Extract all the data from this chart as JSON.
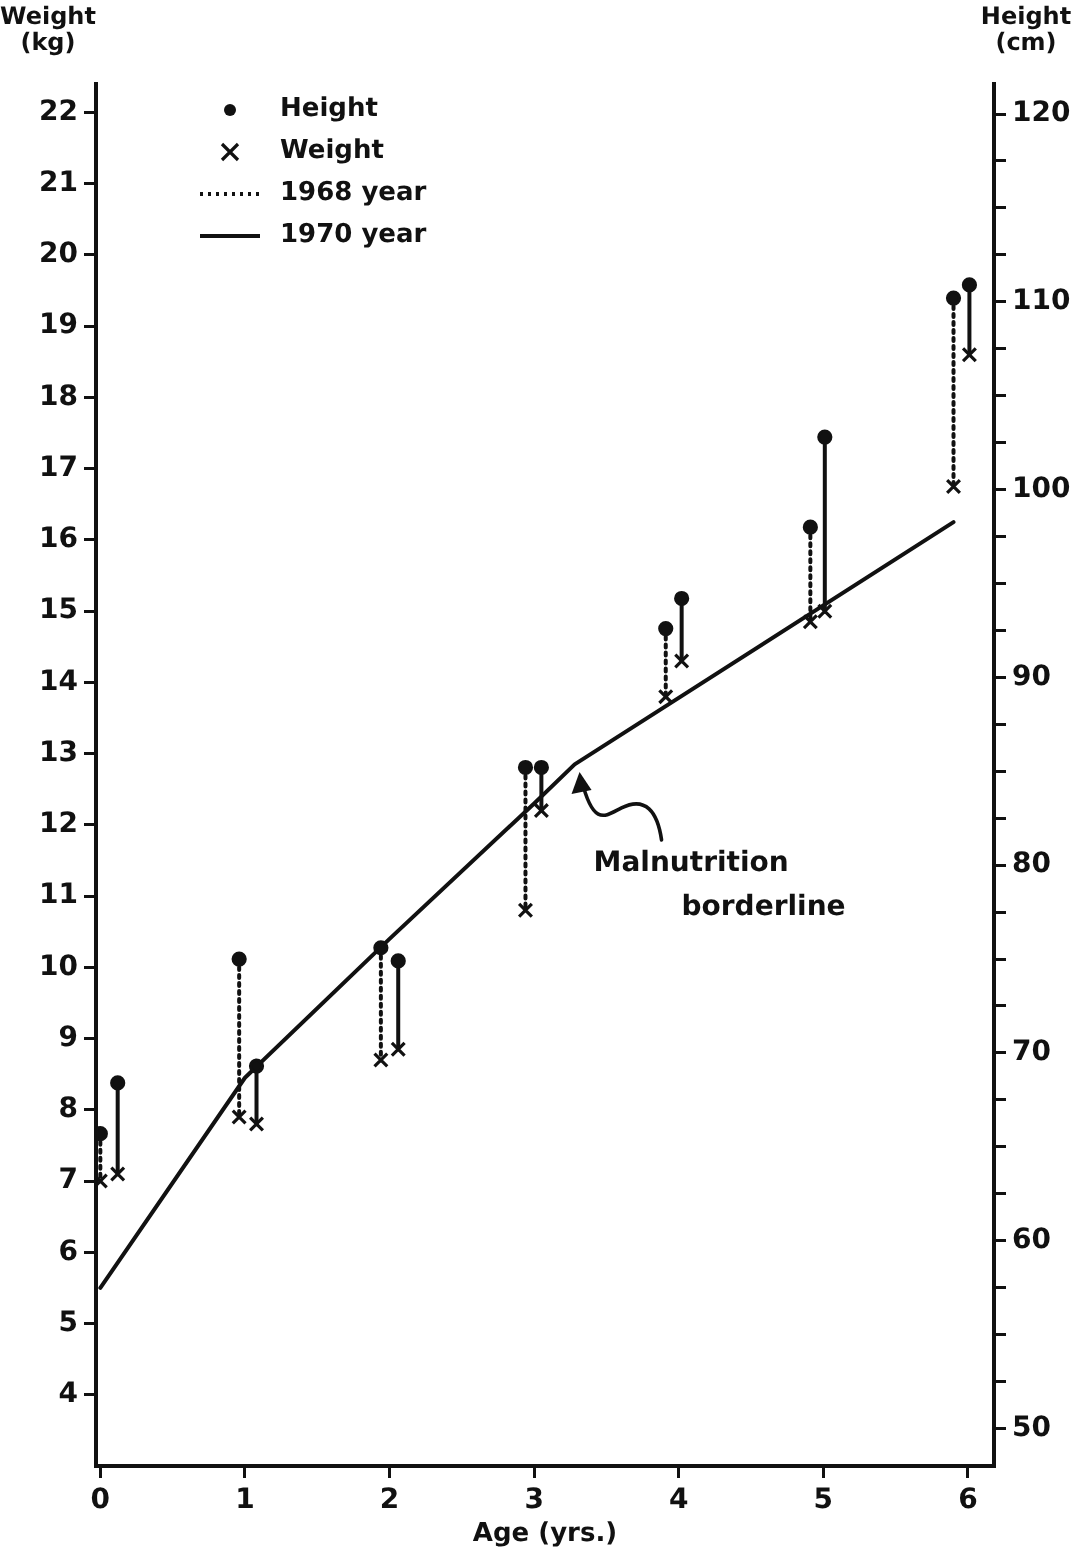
{
  "chart_data": {
    "type": "line",
    "xlabel": "Age (yrs.)",
    "ylabel": "Weight (kg)",
    "y2label": "Height (cm)",
    "xlim": [
      -0.03,
      6.18
    ],
    "xticks": [
      0,
      1,
      2,
      3,
      4,
      5,
      6
    ],
    "ylim": [
      3,
      22.4
    ],
    "yticks": [
      4,
      5,
      6,
      7,
      8,
      9,
      10,
      11,
      12,
      13,
      14,
      15,
      16,
      17,
      18,
      19,
      20,
      21,
      22
    ],
    "y2lim": [
      48,
      121.6
    ],
    "y2ticks": [
      50,
      {
        "value": 52.5,
        "label": null
      },
      {
        "value": 55,
        "label": null
      },
      {
        "value": 57.5,
        "label": null
      },
      60,
      {
        "value": 62.5,
        "label": null
      },
      {
        "value": 65,
        "label": null
      },
      {
        "value": 67.5,
        "label": null
      },
      70,
      {
        "value": 72.5,
        "label": null
      },
      {
        "value": 75,
        "label": null
      },
      {
        "value": 77.5,
        "label": null
      },
      80,
      {
        "value": 82.5,
        "label": null
      },
      {
        "value": 85,
        "label": null
      },
      {
        "value": 87.5,
        "label": null
      },
      90,
      {
        "value": 92.5,
        "label": null
      },
      {
        "value": 95,
        "label": null
      },
      {
        "value": 97.5,
        "label": null
      },
      100,
      {
        "value": 102.5,
        "label": null
      },
      {
        "value": 105,
        "label": null
      },
      {
        "value": 107.5,
        "label": null
      },
      110,
      {
        "value": 112.5,
        "label": null
      },
      {
        "value": 115,
        "label": null
      },
      {
        "value": 117.5,
        "label": null
      },
      120
    ],
    "legend": "top left",
    "series": [
      {
        "name": "Height",
        "type": "scatter",
        "marker": "circle",
        "axis": "y2",
        "color": "#111111",
        "x": [
          0,
          0.12,
          0.96,
          1.08,
          1.94,
          2.06,
          2.94,
          3.05,
          3.91,
          4.02,
          4.91,
          5.01,
          5.9,
          6.01
        ],
        "values": [
          65.7,
          68.4,
          75.0,
          69.3,
          75.6,
          74.9,
          85.2,
          85.2,
          92.6,
          94.2,
          98.0,
          102.8,
          110.2,
          110.9
        ]
      },
      {
        "name": "Weight",
        "type": "scatter",
        "marker": "cross",
        "color": "#111111",
        "x": [
          0,
          0.12,
          0.96,
          1.08,
          1.94,
          2.06,
          2.94,
          3.05,
          3.91,
          4.02,
          4.91,
          5.01,
          5.9,
          6.01
        ],
        "values": [
          7.0,
          7.1,
          7.9,
          7.8,
          8.7,
          8.85,
          10.8,
          12.2,
          13.8,
          14.3,
          14.85,
          15.0,
          16.75,
          18.6
        ]
      },
      {
        "name": "1968 year",
        "type": "line",
        "line_style": "dotted",
        "marker": "none",
        "axis": "y2",
        "color": "#111111",
        "x": [
          0,
          0,
          null,
          0.96,
          0.96,
          null,
          1.94,
          1.94,
          null,
          2.94,
          2.94,
          null,
          3.91,
          3.91,
          null,
          4.91,
          4.91,
          null,
          5.9,
          5.9
        ],
        "values": [
          65.7,
          63.2,
          null,
          75.0,
          66.6,
          null,
          75.6,
          69.6,
          null,
          85.2,
          77.6,
          null,
          92.6,
          89.0,
          null,
          98.0,
          93.0,
          null,
          110.2,
          100.2
        ]
      },
      {
        "name": "1970 year",
        "type": "line",
        "line_style": "solid",
        "marker": "none",
        "axis": "y2",
        "color": "#111111",
        "x": [
          0.12,
          0.12,
          null,
          1.08,
          1.08,
          null,
          2.06,
          2.06,
          null,
          3.05,
          3.05,
          null,
          4.02,
          4.02,
          null,
          5.01,
          5.01,
          null,
          6.01,
          6.01
        ],
        "values": [
          68.4,
          63.6,
          null,
          69.3,
          66.2,
          null,
          74.9,
          70.2,
          null,
          85.2,
          82.9,
          null,
          94.2,
          90.9,
          null,
          102.8,
          93.5,
          null,
          110.9,
          107.2
        ]
      },
      {
        "type": "line",
        "line_style": "solid",
        "marker": "none",
        "color": "#111111",
        "x": [
          0,
          1,
          2,
          3,
          3.28,
          5.9
        ],
        "values": [
          5.5,
          8.45,
          10.4,
          12.3,
          12.85,
          16.25
        ]
      }
    ],
    "annotations": [
      {
        "text": "Malnutrition borderline",
        "x": 3.3,
        "y": 12.8
      }
    ]
  }
}
